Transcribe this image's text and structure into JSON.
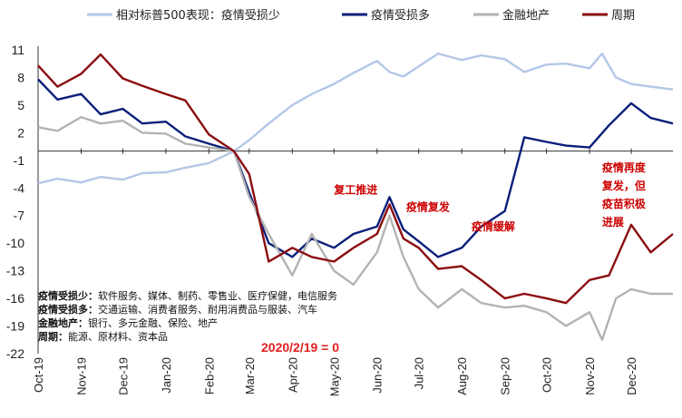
{
  "chart_data": {
    "type": "line",
    "title": "",
    "xlabel": "",
    "ylabel": "",
    "ylim": [
      -22,
      11
    ],
    "yticks": [
      11,
      8,
      5,
      2,
      -1,
      -4,
      -7,
      -10,
      -13,
      -16,
      -19,
      -22
    ],
    "x_months": [
      "Oct-19",
      "Nov-19",
      "Dec-19",
      "Jan-20",
      "Feb-20",
      "Mar-20",
      "Apr-20",
      "May-20",
      "Jun-20",
      "Jul-20",
      "Aug-20",
      "Sep-20",
      "Oct-20",
      "Nov-20",
      "Dec-20"
    ],
    "xlim": [
      "2019-10-01",
      "2020-12-31"
    ],
    "series": [
      {
        "name": "相对标普500表现：疫情受损少",
        "color": "#b4c7e7",
        "points": [
          [
            "2019-10-01",
            -3.5
          ],
          [
            "2019-10-15",
            -3.0
          ],
          [
            "2019-11-01",
            -3.4
          ],
          [
            "2019-11-15",
            -2.8
          ],
          [
            "2019-12-01",
            -3.1
          ],
          [
            "2019-12-15",
            -2.4
          ],
          [
            "2020-01-01",
            -2.3
          ],
          [
            "2020-01-15",
            -1.8
          ],
          [
            "2020-02-01",
            -1.3
          ],
          [
            "2020-02-19",
            0.0
          ],
          [
            "2020-03-01",
            1.2
          ],
          [
            "2020-03-15",
            3.0
          ],
          [
            "2020-04-01",
            5.0
          ],
          [
            "2020-04-15",
            6.2
          ],
          [
            "2020-05-01",
            7.3
          ],
          [
            "2020-05-15",
            8.5
          ],
          [
            "2020-06-01",
            9.8
          ],
          [
            "2020-06-10",
            8.6
          ],
          [
            "2020-06-20",
            8.1
          ],
          [
            "2020-07-01",
            9.2
          ],
          [
            "2020-07-15",
            10.6
          ],
          [
            "2020-08-01",
            9.9
          ],
          [
            "2020-08-15",
            10.4
          ],
          [
            "2020-09-01",
            10.0
          ],
          [
            "2020-09-15",
            8.6
          ],
          [
            "2020-10-01",
            9.4
          ],
          [
            "2020-10-15",
            9.5
          ],
          [
            "2020-11-01",
            9.0
          ],
          [
            "2020-11-10",
            10.6
          ],
          [
            "2020-11-20",
            8.0
          ],
          [
            "2020-12-01",
            7.3
          ],
          [
            "2020-12-15",
            7.0
          ],
          [
            "2020-12-31",
            6.7
          ]
        ]
      },
      {
        "name": "疫情受损多",
        "color": "#0b1f7a",
        "points": [
          [
            "2019-10-01",
            7.8
          ],
          [
            "2019-10-15",
            5.6
          ],
          [
            "2019-11-01",
            6.2
          ],
          [
            "2019-11-15",
            4.0
          ],
          [
            "2019-12-01",
            4.6
          ],
          [
            "2019-12-15",
            3.0
          ],
          [
            "2020-01-01",
            3.2
          ],
          [
            "2020-01-15",
            1.6
          ],
          [
            "2020-02-01",
            0.8
          ],
          [
            "2020-02-19",
            0.0
          ],
          [
            "2020-03-01",
            -4.5
          ],
          [
            "2020-03-15",
            -10.0
          ],
          [
            "2020-04-01",
            -11.5
          ],
          [
            "2020-04-15",
            -9.5
          ],
          [
            "2020-05-01",
            -10.5
          ],
          [
            "2020-05-15",
            -9.0
          ],
          [
            "2020-06-01",
            -8.2
          ],
          [
            "2020-06-10",
            -5.0
          ],
          [
            "2020-06-20",
            -8.5
          ],
          [
            "2020-07-01",
            -9.8
          ],
          [
            "2020-07-15",
            -11.5
          ],
          [
            "2020-08-01",
            -10.5
          ],
          [
            "2020-08-15",
            -8.2
          ],
          [
            "2020-09-01",
            -6.5
          ],
          [
            "2020-09-15",
            1.5
          ],
          [
            "2020-10-01",
            1.0
          ],
          [
            "2020-10-15",
            0.6
          ],
          [
            "2020-11-01",
            0.4
          ],
          [
            "2020-11-15",
            2.8
          ],
          [
            "2020-12-01",
            5.2
          ],
          [
            "2020-12-15",
            3.6
          ],
          [
            "2020-12-31",
            3.0
          ]
        ]
      },
      {
        "name": "金融地产",
        "color": "#b3b3b3",
        "points": [
          [
            "2019-10-01",
            2.6
          ],
          [
            "2019-10-15",
            2.2
          ],
          [
            "2019-11-01",
            3.7
          ],
          [
            "2019-11-15",
            3.0
          ],
          [
            "2019-12-01",
            3.3
          ],
          [
            "2019-12-15",
            2.0
          ],
          [
            "2020-01-01",
            1.9
          ],
          [
            "2020-01-15",
            0.8
          ],
          [
            "2020-02-01",
            0.4
          ],
          [
            "2020-02-19",
            0.0
          ],
          [
            "2020-03-01",
            -5.0
          ],
          [
            "2020-03-15",
            -9.0
          ],
          [
            "2020-04-01",
            -13.5
          ],
          [
            "2020-04-15",
            -9.0
          ],
          [
            "2020-05-01",
            -13.0
          ],
          [
            "2020-05-15",
            -14.5
          ],
          [
            "2020-06-01",
            -11.0
          ],
          [
            "2020-06-10",
            -7.0
          ],
          [
            "2020-06-20",
            -11.5
          ],
          [
            "2020-07-01",
            -15.0
          ],
          [
            "2020-07-15",
            -17.0
          ],
          [
            "2020-08-01",
            -15.0
          ],
          [
            "2020-08-15",
            -16.5
          ],
          [
            "2020-09-01",
            -17.0
          ],
          [
            "2020-09-15",
            -16.8
          ],
          [
            "2020-10-01",
            -17.5
          ],
          [
            "2020-10-15",
            -19.0
          ],
          [
            "2020-11-01",
            -17.5
          ],
          [
            "2020-11-10",
            -20.5
          ],
          [
            "2020-11-20",
            -16.0
          ],
          [
            "2020-12-01",
            -15.0
          ],
          [
            "2020-12-15",
            -15.5
          ],
          [
            "2020-12-31",
            -15.5
          ]
        ]
      },
      {
        "name": "周期",
        "color": "#8b0d10",
        "points": [
          [
            "2019-10-01",
            9.3
          ],
          [
            "2019-10-15",
            7.0
          ],
          [
            "2019-11-01",
            8.4
          ],
          [
            "2019-11-15",
            10.5
          ],
          [
            "2019-12-01",
            7.9
          ],
          [
            "2019-12-15",
            7.1
          ],
          [
            "2020-01-01",
            6.2
          ],
          [
            "2020-01-15",
            5.5
          ],
          [
            "2020-02-01",
            1.8
          ],
          [
            "2020-02-19",
            0.0
          ],
          [
            "2020-03-01",
            -2.5
          ],
          [
            "2020-03-15",
            -12.0
          ],
          [
            "2020-04-01",
            -10.5
          ],
          [
            "2020-04-15",
            -11.5
          ],
          [
            "2020-05-01",
            -12.0
          ],
          [
            "2020-05-15",
            -10.5
          ],
          [
            "2020-06-01",
            -9.0
          ],
          [
            "2020-06-10",
            -5.8
          ],
          [
            "2020-06-20",
            -9.5
          ],
          [
            "2020-07-01",
            -10.5
          ],
          [
            "2020-07-15",
            -12.8
          ],
          [
            "2020-08-01",
            -12.5
          ],
          [
            "2020-08-15",
            -14.0
          ],
          [
            "2020-09-01",
            -16.0
          ],
          [
            "2020-09-15",
            -15.5
          ],
          [
            "2020-10-01",
            -16.0
          ],
          [
            "2020-10-15",
            -16.5
          ],
          [
            "2020-11-01",
            -14.0
          ],
          [
            "2020-11-15",
            -13.5
          ],
          [
            "2020-12-01",
            -8.0
          ],
          [
            "2020-12-15",
            -11.0
          ],
          [
            "2020-12-31",
            -9.0
          ]
        ]
      }
    ],
    "annotations": [
      {
        "lines": [
          "复工推进"
        ],
        "x": "2020-05-01",
        "y": -4.6
      },
      {
        "lines": [
          "疫情复发"
        ],
        "x": "2020-06-22",
        "y": -6.5
      },
      {
        "lines": [
          "疫情缓解"
        ],
        "x": "2020-08-08",
        "y": -8.6
      },
      {
        "lines": [
          "疫情再度",
          "复发，但",
          "疫苗积极",
          "进展"
        ],
        "x": "2020-11-10",
        "y": -2.2
      }
    ],
    "baseline_label": "2020/2/19 = 0",
    "notes": [
      {
        "key": "疫情受损少：",
        "text": "软件服务、媒体、制药、零售业、医疗保健，电信服务"
      },
      {
        "key": "疫情受损多：",
        "text": "交通运输、消费者服务、耐用消费品与服装、汽车"
      },
      {
        "key": "金融地产：",
        "text": "银行、多元金融、保险、地产"
      },
      {
        "key": "周期：",
        "text": "能源、原材料、资本品"
      }
    ]
  }
}
